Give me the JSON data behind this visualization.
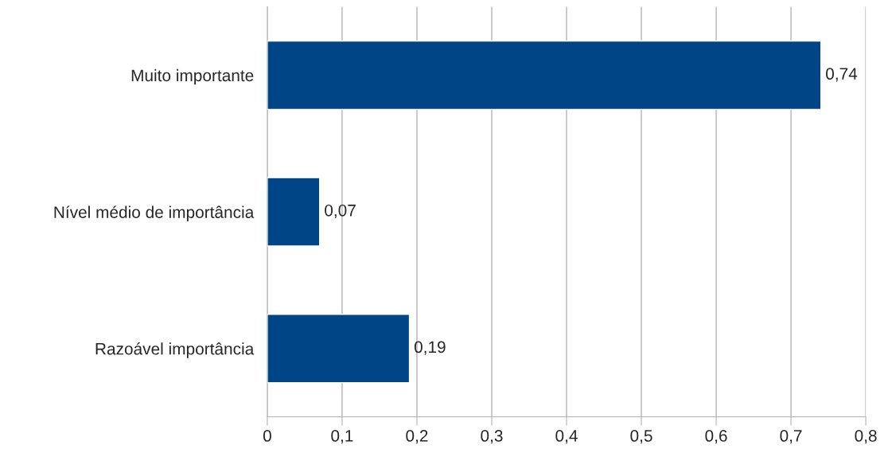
{
  "chart_data": {
    "type": "bar",
    "orientation": "horizontal",
    "categories": [
      "Muito importante",
      "Nível médio de importância",
      "Razoável importância"
    ],
    "values": [
      0.74,
      0.07,
      0.19
    ],
    "value_labels": [
      "0,74",
      "0,07",
      "0,19"
    ],
    "color": "#004586",
    "xlim": [
      0,
      0.8
    ],
    "xticks": [
      0,
      {
        "value": 0.1,
        "label": "0,1"
      },
      {
        "value": 0.2,
        "label": "0,2"
      },
      {
        "value": 0.3,
        "label": "0,3"
      },
      {
        "value": 0.4,
        "label": "0,4"
      },
      {
        "value": 0.5,
        "label": "0,5"
      },
      {
        "value": 0.6,
        "label": "0,6"
      },
      {
        "value": 0.7,
        "label": "0,7"
      },
      {
        "value": 0.8,
        "label": "0,8"
      }
    ],
    "grid": "x"
  }
}
